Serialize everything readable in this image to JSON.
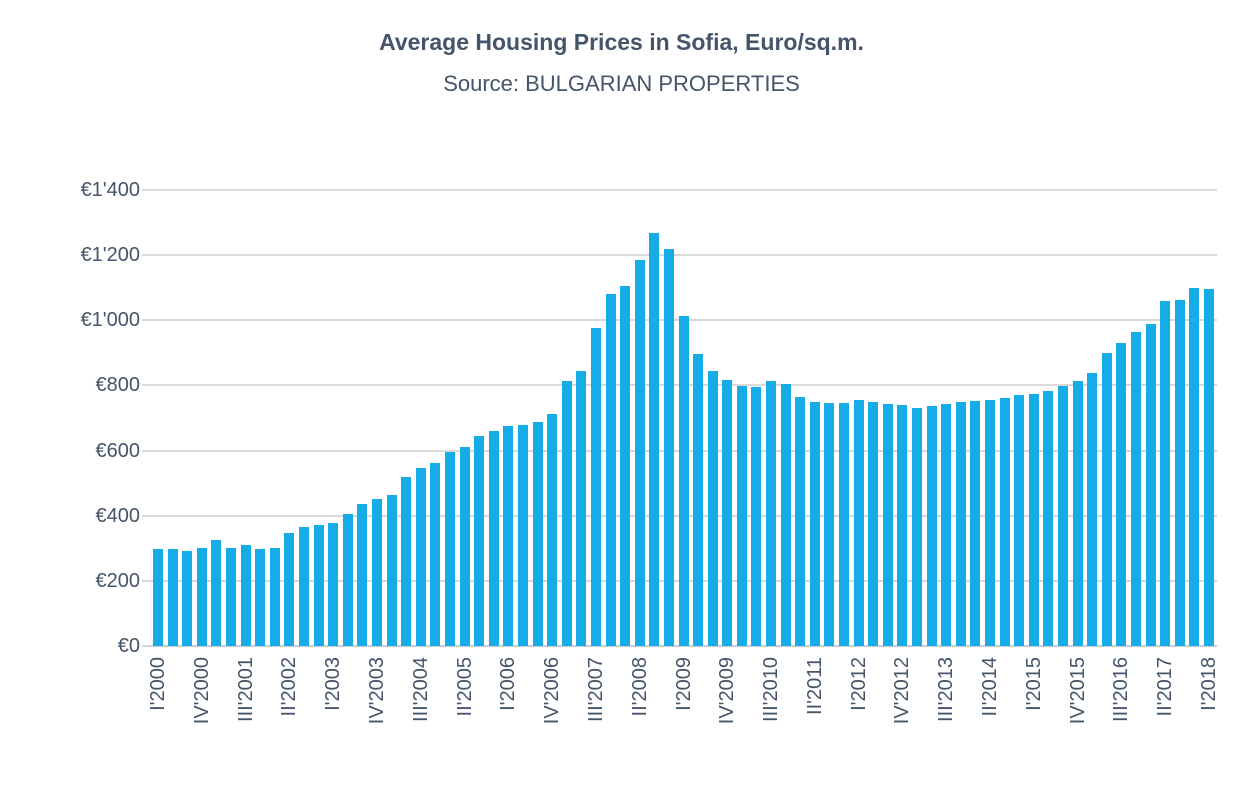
{
  "header": {
    "title": "Average Housing Prices in Sofia, Euro/sq.m.",
    "subtitle": "Source: BULGARIAN PROPERTIES"
  },
  "colors": {
    "bar": "#16ACE8",
    "text": "#44546A",
    "gridline": "#D9D9D9",
    "axis_line": "#CFCFCF",
    "background": "#FFFFFF"
  },
  "chart_data": {
    "type": "bar",
    "title": "Average Housing Prices in Sofia, Euro/sq.m.",
    "subtitle": "Source: BULGARIAN PROPERTIES",
    "xlabel": "",
    "ylabel": "",
    "ylim": [
      0,
      1400
    ],
    "grid": true,
    "legend": false,
    "y_tick_values": [
      0,
      200,
      400,
      600,
      800,
      1000,
      1200,
      1400
    ],
    "y_tick_labels": [
      "€0",
      "€200",
      "€400",
      "€600",
      "€800",
      "€1'000",
      "€1'200",
      "€1'400"
    ],
    "x_tick_every": 3,
    "x_tick_labels": [
      "I'2000",
      "IV'2000",
      "III'2001",
      "II'2002",
      "I'2003",
      "IV'2003",
      "III'2004",
      "II'2005",
      "I'2006",
      "IV'2006",
      "III'2007",
      "II'2008",
      "I'2009",
      "IV'2009",
      "III'2010",
      "II'2011",
      "I'2012",
      "IV'2012",
      "III'2013",
      "II'2014",
      "I'2015",
      "IV'2015",
      "III'2016",
      "II'2017",
      "I'2018"
    ],
    "categories": [
      "I'2000",
      "II'2000",
      "III'2000",
      "IV'2000",
      "I'2001",
      "II'2001",
      "III'2001",
      "IV'2001",
      "I'2002",
      "II'2002",
      "III'2002",
      "IV'2002",
      "I'2003",
      "II'2003",
      "III'2003",
      "IV'2003",
      "I'2004",
      "II'2004",
      "III'2004",
      "IV'2004",
      "I'2005",
      "II'2005",
      "III'2005",
      "IV'2005",
      "I'2006",
      "II'2006",
      "III'2006",
      "IV'2006",
      "I'2007",
      "II'2007",
      "III'2007",
      "IV'2007",
      "I'2008",
      "II'2008",
      "III'2008",
      "IV'2008",
      "I'2009",
      "II'2009",
      "III'2009",
      "IV'2009",
      "I'2010",
      "II'2010",
      "III'2010",
      "IV'2010",
      "I'2011",
      "II'2011",
      "III'2011",
      "IV'2011",
      "I'2012",
      "II'2012",
      "III'2012",
      "IV'2012",
      "I'2013",
      "II'2013",
      "III'2013",
      "IV'2013",
      "I'2014",
      "II'2014",
      "III'2014",
      "IV'2014",
      "I'2015",
      "II'2015",
      "III'2015",
      "IV'2015",
      "I'2016",
      "II'2016",
      "III'2016",
      "IV'2016",
      "I'2017",
      "II'2017",
      "III'2017",
      "IV'2017",
      "I'2018"
    ],
    "values": [
      297,
      297,
      293,
      300,
      325,
      300,
      311,
      297,
      300,
      346,
      366,
      372,
      377,
      405,
      437,
      451,
      464,
      519,
      546,
      562,
      597,
      610,
      645,
      660,
      676,
      680,
      689,
      711,
      814,
      844,
      975,
      1082,
      1106,
      1185,
      1268,
      1218,
      1014,
      898,
      843,
      816,
      798,
      796,
      815,
      804,
      765,
      750,
      745,
      747,
      754,
      750,
      743,
      739,
      730,
      737,
      744,
      748,
      753,
      756,
      760,
      772,
      775,
      783,
      798,
      815,
      838,
      900,
      930,
      965,
      988,
      1060,
      1062,
      1100,
      1095
    ]
  }
}
